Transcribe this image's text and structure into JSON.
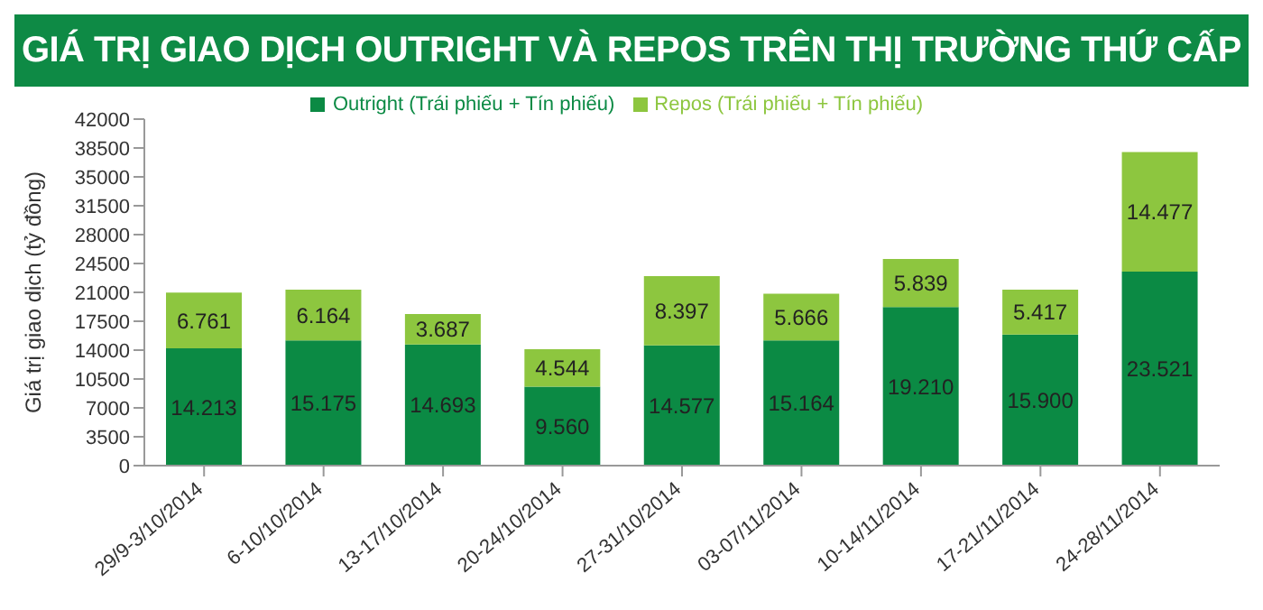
{
  "chart_data": {
    "type": "bar",
    "title": "GIÁ TRỊ GIAO DỊCH OUTRIGHT VÀ REPOS TRÊN THỊ TRƯỜNG THỨ CẤP",
    "ylabel": "Giá trị giao dịch (tỷ đồng)",
    "categories": [
      "29/9-3/10/2014",
      "6-10/10/2014",
      "13-17/10/2014",
      "20-24/10/2014",
      "27-31/10/2014",
      "03-07/11/2014",
      "10-14/11/2014",
      "17-21/11/2014",
      "24-28/11/2014"
    ],
    "stacked": true,
    "series": [
      {
        "name": "Outright (Trái phiếu + Tín phiếu)",
        "color": "#0b8a44",
        "values": [
          14213,
          15175,
          14693,
          9560,
          14577,
          15164,
          19210,
          15900,
          23521
        ],
        "value_labels": [
          "14.213",
          "15.175",
          "14.693",
          "9.560",
          "14.577",
          "15.164",
          "19.210",
          "15.900",
          "23.521"
        ]
      },
      {
        "name": "Repos (Trái phiếu + Tín phiếu)",
        "color": "#8dc63f",
        "values": [
          6761,
          6164,
          3687,
          4544,
          8397,
          5666,
          5839,
          5417,
          14477
        ],
        "value_labels": [
          "6.761",
          "6.164",
          "3.687",
          "4.544",
          "8.397",
          "5.666",
          "5.839",
          "5.417",
          "14.477"
        ]
      }
    ],
    "ylim": [
      0,
      42000
    ],
    "yticks": [
      0,
      3500,
      7000,
      10500,
      14000,
      17500,
      21000,
      24500,
      28000,
      31500,
      35000,
      38500,
      42000
    ],
    "grid": false,
    "legend": "top"
  }
}
